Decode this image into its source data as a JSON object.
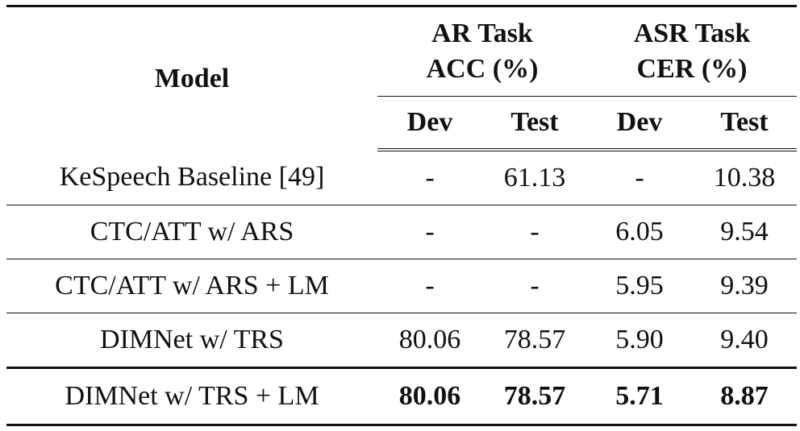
{
  "table": {
    "header": {
      "model": "Model",
      "group_ar": [
        "AR Task",
        "ACC (%)"
      ],
      "group_asr": [
        "ASR Task",
        "CER (%)"
      ],
      "sub": [
        "Dev",
        "Test",
        "Dev",
        "Test"
      ]
    },
    "rows": [
      {
        "model": "KeSpeech Baseline [49]",
        "cells": [
          "-",
          "61.13",
          "-",
          "10.38"
        ],
        "bold": false
      },
      {
        "model": "CTC/ATT w/ ARS",
        "cells": [
          "-",
          "-",
          "6.05",
          "9.54"
        ],
        "bold": false
      },
      {
        "model": "CTC/ATT w/ ARS + LM",
        "cells": [
          "-",
          "-",
          "5.95",
          "9.39"
        ],
        "bold": false
      },
      {
        "model": "DIMNet w/ TRS",
        "cells": [
          "80.06",
          "78.57",
          "5.90",
          "9.40"
        ],
        "bold": false
      },
      {
        "model": "DIMNet w/ TRS + LM",
        "cells": [
          "80.06",
          "78.57",
          "5.71",
          "8.87"
        ],
        "bold": true
      }
    ]
  }
}
